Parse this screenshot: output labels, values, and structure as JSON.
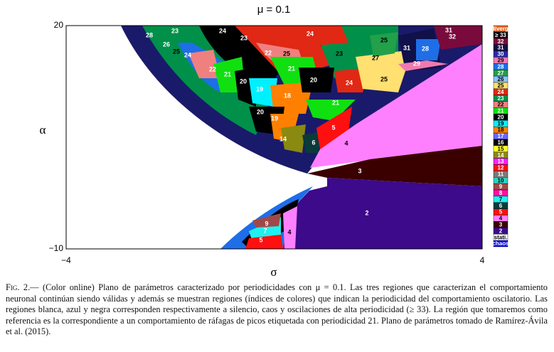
{
  "chart_data": {
    "type": "region-map",
    "title": "μ = 0.1",
    "x_label": "σ",
    "y_label": "α",
    "xlim": [
      -4,
      4
    ],
    "ylim": [
      -10,
      20
    ],
    "xticks": [
      {
        "value": -4,
        "label": "−4"
      },
      4
    ],
    "yticks": [
      {
        "value": -10,
        "label": "−10"
      },
      20
    ],
    "legend": [
      {
        "label": "diverg.",
        "color": "#e8601c"
      },
      {
        "label": "≥ 33",
        "color": "#000000"
      },
      {
        "label": "32",
        "color": "#7a0a3c"
      },
      {
        "label": "31",
        "color": "#10104a"
      },
      {
        "label": "30",
        "color": "#2828a8"
      },
      {
        "label": "29",
        "color": "#f07ab0"
      },
      {
        "label": "28",
        "color": "#1e6ee8"
      },
      {
        "label": "27",
        "color": "#22a04a"
      },
      {
        "label": "26",
        "color": "#8cc4ff"
      },
      {
        "label": "25",
        "color": "#ffe070"
      },
      {
        "label": "24",
        "color": "#e02814"
      },
      {
        "label": "23",
        "color": "#00904a"
      },
      {
        "label": "22",
        "color": "#f08080"
      },
      {
        "label": "21",
        "color": "#10e010"
      },
      {
        "label": "20",
        "color": "#000000"
      },
      {
        "label": "19",
        "color": "#00f0ff"
      },
      {
        "label": "18",
        "color": "#ff8000"
      },
      {
        "label": "17",
        "color": "#6868f8"
      },
      {
        "label": "16",
        "color": "#000000"
      },
      {
        "label": "15",
        "color": "#ffff30"
      },
      {
        "label": "14",
        "color": "#8a8a10"
      },
      {
        "label": "13",
        "color": "#ff20ff"
      },
      {
        "label": "12",
        "color": "#ff1010"
      },
      {
        "label": "11",
        "color": "#7a7a7a"
      },
      {
        "label": "10",
        "color": "#30d0c0"
      },
      {
        "label": "9",
        "color": "#a04848"
      },
      {
        "label": "8",
        "color": "#ff10a0"
      },
      {
        "label": "7",
        "color": "#20f0f0"
      },
      {
        "label": "6",
        "color": "#0a3a3a"
      },
      {
        "label": "5",
        "color": "#ff1010"
      },
      {
        "label": "4",
        "color": "#ff80ff"
      },
      {
        "label": "3",
        "color": "#3a0000"
      },
      {
        "label": "2",
        "color": "#3c0a8a"
      },
      {
        "label": "stati.",
        "color": "#ffffff"
      },
      {
        "label": "chaos",
        "color": "#0000f0"
      }
    ],
    "region_labels": [
      "28",
      "23",
      "24",
      "24",
      "26",
      "25",
      "24",
      "23",
      "22",
      "25",
      "23",
      "25",
      "31",
      "28",
      "31",
      "32",
      "27",
      "29",
      "22",
      "21",
      "21",
      "20",
      "19",
      "20",
      "24",
      "25",
      "18",
      "21",
      "20",
      "19",
      "14",
      "5",
      "4",
      "6",
      "3",
      "2",
      "9",
      "7",
      "4",
      "5"
    ]
  },
  "caption": {
    "label": "Fig. 2.—",
    "text": "(Color online) Plano de parámetros caracterizado por periodicidades con μ = 0.1. Las tres regiones que caracterizan el comportamiento neuronal continúan siendo válidas y además se muestran regiones (índices de colores) que indican la periodicidad del comportamiento oscilatorio. Las regiones blanca, azul y negra corresponden respectivamente a silencio, caos y oscilaciones de alta periodicidad (≥ 33). La región que tomaremos como referencia es la correspondiente a un comportamiento de ráfagas de picos etiquetada con periodicidad 21. Plano de parámetros tomado de Ramírez-Ávila et al. (2015)."
  }
}
